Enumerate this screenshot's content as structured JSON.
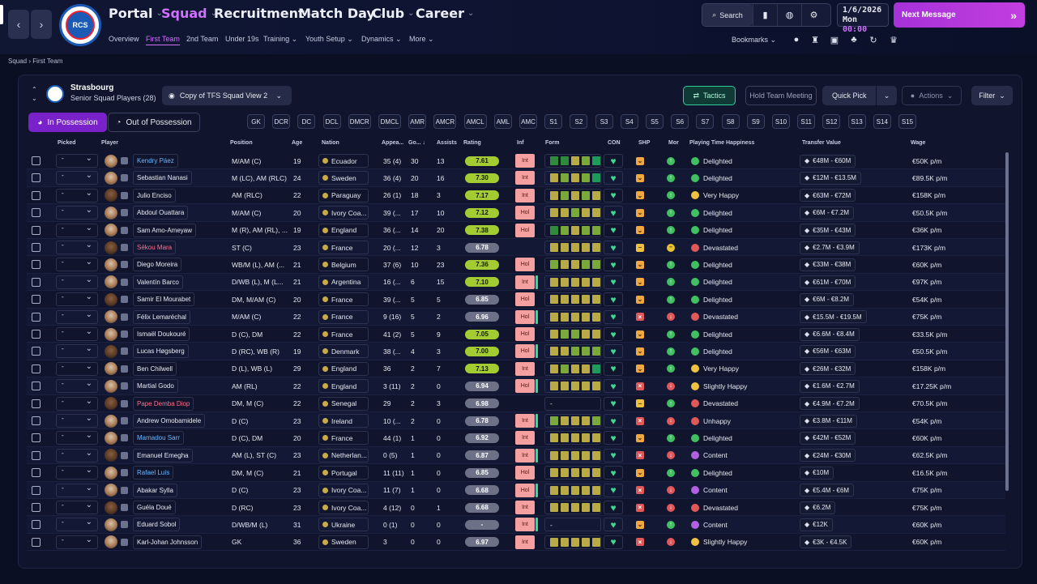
{
  "nav": {
    "back": "‹",
    "forward": "›",
    "menu": [
      {
        "label": "Portal",
        "active": false
      },
      {
        "label": "Squad",
        "active": true
      },
      {
        "label": "Recruitment",
        "active": false
      },
      {
        "label": "Match Day",
        "active": false
      },
      {
        "label": "Club",
        "active": false
      },
      {
        "label": "Career",
        "active": false
      }
    ],
    "submenu": [
      {
        "label": "Overview"
      },
      {
        "label": "First Team",
        "active": true
      },
      {
        "label": "2nd Team"
      },
      {
        "label": "Under 19s"
      },
      {
        "label": "Training ⌄"
      },
      {
        "label": "Youth Setup ⌄"
      },
      {
        "label": "Dynamics ⌄"
      },
      {
        "label": "More ⌄"
      }
    ],
    "search_label": "Search",
    "date": "1/6/2026",
    "day": "Mon",
    "time": "00:00",
    "next_message": "Next Message",
    "bookmarks": "Bookmarks ⌄"
  },
  "breadcrumb": {
    "root": "Squad",
    "sep": "›",
    "leaf": "First Team"
  },
  "team": {
    "name": "Strasbourg",
    "subtitle": "Senior Squad Players (28)"
  },
  "toolbar": {
    "view": "Copy of TFS Squad View 2",
    "tactics": "Tactics",
    "hold_meeting": "Hold Team Meeting",
    "quick_pick": "Quick Pick",
    "actions": "Actions",
    "filter": "Filter",
    "in_possession": "In Possession",
    "out_of_possession": "Out of Possession"
  },
  "positions": [
    "GK",
    "DCR",
    "DC",
    "DCL",
    "DMCR",
    "DMCL",
    "AMR",
    "AMCR",
    "AMCL",
    "AML",
    "AMC",
    "S1",
    "S2",
    "S3",
    "S4",
    "S5",
    "S6",
    "S7",
    "S8",
    "S9",
    "S10",
    "S11",
    "S12",
    "S13",
    "S14",
    "S15"
  ],
  "columns": {
    "picked": "Picked",
    "player": "Player",
    "position": "Position",
    "age": "Age",
    "nation": "Nation",
    "apps": "Appea...",
    "goals": "Go...",
    "assists": "Assists",
    "rating": "Rating",
    "inf": "Inf",
    "form": "Form",
    "con": "CON",
    "shp": "SHP",
    "mor": "Mor",
    "happiness": "Playing Time Happiness",
    "value": "Transfer Value",
    "wage": "Wage"
  },
  "players": [
    {
      "name": "Kendry Páez",
      "color": "blue",
      "pos": "M/AM (C)",
      "age": "19",
      "nation": "Ecuador",
      "apps": "35 (4)",
      "goals": "30",
      "assists": "13",
      "rating": "7.61",
      "inf": "Int",
      "form": [
        "dg",
        "dg",
        "y",
        "lg",
        "gg"
      ],
      "shp": "up",
      "mor": "g",
      "hap": "Delighted",
      "hapc": "g",
      "value": "€48M - €60M",
      "wage": "€50K p/m"
    },
    {
      "name": "Sebastian Nanasi",
      "color": "",
      "pos": "M (LC), AM (RLC)",
      "age": "24",
      "nation": "Sweden",
      "apps": "36 (4)",
      "goals": "20",
      "assists": "16",
      "rating": "7.30",
      "inf": "Int",
      "form": [
        "y",
        "lg",
        "y",
        "lg",
        "gg"
      ],
      "shp": "up",
      "mor": "g",
      "hap": "Delighted",
      "hapc": "g",
      "value": "€12M - €13.5M",
      "wage": "€89.5K p/m"
    },
    {
      "name": "Julio Enciso",
      "color": "",
      "pos": "AM (RLC)",
      "age": "22",
      "nation": "Paraguay",
      "apps": "26 (1)",
      "goals": "18",
      "assists": "3",
      "rating": "7.17",
      "inf": "Int",
      "form": [
        "y",
        "lg",
        "y",
        "lg",
        "y"
      ],
      "shp": "up",
      "mor": "g",
      "hap": "Very Happy",
      "hapc": "y",
      "value": "€63M - €72M",
      "wage": "€158K p/m"
    },
    {
      "name": "Abdoul Ouattara",
      "color": "",
      "pos": "M/AM (C)",
      "age": "20",
      "nation": "Ivory Coa...",
      "apps": "39 (...",
      "goals": "17",
      "assists": "10",
      "rating": "7.12",
      "inf": "Hol",
      "form": [
        "y",
        "y",
        "lg",
        "y",
        "y"
      ],
      "shp": "up",
      "mor": "g",
      "hap": "Delighted",
      "hapc": "g",
      "value": "€6M - €7.2M",
      "wage": "€50.5K p/m"
    },
    {
      "name": "Sam Amo-Ameyaw",
      "color": "",
      "pos": "M (R), AM (RL), ...",
      "age": "19",
      "nation": "England",
      "apps": "36 (...",
      "goals": "14",
      "assists": "20",
      "rating": "7.38",
      "inf": "Hol",
      "form": [
        "dg",
        "lg",
        "y",
        "lg",
        "lg"
      ],
      "shp": "up",
      "mor": "g",
      "hap": "Delighted",
      "hapc": "g",
      "value": "€35M - €43M",
      "wage": "€36K p/m"
    },
    {
      "name": "Sékou Mara",
      "color": "red",
      "pos": "ST (C)",
      "age": "23",
      "nation": "France",
      "apps": "20 (...",
      "goals": "12",
      "assists": "3",
      "rating": "6.78",
      "inf": "",
      "form": [
        "y",
        "y",
        "y",
        "y",
        "y"
      ],
      "shp": "mid",
      "mor": "y",
      "hap": "Devastated",
      "hapc": "r",
      "value": "€2.7M - €3.9M",
      "wage": "€173K p/m"
    },
    {
      "name": "Diego Moreira",
      "color": "",
      "pos": "WB/M (L), AM (...",
      "age": "21",
      "nation": "Belgium",
      "apps": "37 (6)",
      "goals": "10",
      "assists": "23",
      "rating": "7.36",
      "inf": "Hol",
      "form": [
        "lg",
        "y",
        "y",
        "lg",
        "lg"
      ],
      "shp": "up",
      "mor": "g",
      "hap": "Delighted",
      "hapc": "g",
      "value": "€33M - €38M",
      "wage": "€60K p/m"
    },
    {
      "name": "Valentín Barco",
      "color": "",
      "pos": "D/WB (L), M (L...",
      "age": "21",
      "nation": "Argentina",
      "apps": "16 (...",
      "goals": "6",
      "assists": "15",
      "rating": "7.10",
      "inf": "Int",
      "form": [
        "y",
        "y",
        "y",
        "y",
        "y"
      ],
      "shp": "up",
      "mor": "g",
      "hap": "Delighted",
      "hapc": "g",
      "value": "€61M - €70M",
      "wage": "€97K p/m"
    },
    {
      "name": "Samir El Mourabet",
      "color": "",
      "pos": "DM, M/AM (C)",
      "age": "20",
      "nation": "France",
      "apps": "39 (...",
      "goals": "5",
      "assists": "5",
      "rating": "6.85",
      "inf": "Hol",
      "form": [
        "y",
        "y",
        "y",
        "y",
        "y"
      ],
      "shp": "up",
      "mor": "g",
      "hap": "Delighted",
      "hapc": "g",
      "value": "€6M - €8.2M",
      "wage": "€54K p/m"
    },
    {
      "name": "Félix Lemaréchal",
      "color": "",
      "pos": "M/AM (C)",
      "age": "22",
      "nation": "France",
      "apps": "9 (16)",
      "goals": "5",
      "assists": "2",
      "rating": "6.96",
      "inf": "Hol",
      "form": [
        "y",
        "y",
        "y",
        "y",
        "y"
      ],
      "shp": "x",
      "mor": "r",
      "hap": "Devastated",
      "hapc": "r",
      "value": "€15.5M - €19.5M",
      "wage": "€75K p/m"
    },
    {
      "name": "Ismaël Doukouré",
      "color": "",
      "pos": "D (C), DM",
      "age": "22",
      "nation": "France",
      "apps": "41 (2)",
      "goals": "5",
      "assists": "9",
      "rating": "7.05",
      "inf": "Hol",
      "form": [
        "y",
        "lg",
        "lg",
        "y",
        "y"
      ],
      "shp": "up",
      "mor": "g",
      "hap": "Delighted",
      "hapc": "g",
      "value": "€6.6M - €8.4M",
      "wage": "€33.5K p/m"
    },
    {
      "name": "Lucas Høgsberg",
      "color": "",
      "pos": "D (RC), WB (R)",
      "age": "19",
      "nation": "Denmark",
      "apps": "38 (...",
      "goals": "4",
      "assists": "3",
      "rating": "7.00",
      "inf": "Hol",
      "form": [
        "y",
        "y",
        "lg",
        "lg",
        "lg"
      ],
      "shp": "up",
      "mor": "g",
      "hap": "Delighted",
      "hapc": "g",
      "value": "€56M - €63M",
      "wage": "€50.5K p/m"
    },
    {
      "name": "Ben Chilwell",
      "color": "",
      "pos": "D (L), WB (L)",
      "age": "29",
      "nation": "England",
      "apps": "36",
      "goals": "2",
      "assists": "7",
      "rating": "7.13",
      "inf": "Int",
      "form": [
        "y",
        "lg",
        "y",
        "y",
        "gg"
      ],
      "shp": "up",
      "mor": "g",
      "hap": "Very Happy",
      "hapc": "y",
      "value": "€26M - €32M",
      "wage": "€158K p/m"
    },
    {
      "name": "Martial Godo",
      "color": "",
      "pos": "AM (RL)",
      "age": "22",
      "nation": "England",
      "apps": "3 (11)",
      "goals": "2",
      "assists": "0",
      "rating": "6.94",
      "inf": "Hol",
      "form": [
        "y",
        "y",
        "y",
        "y",
        "y"
      ],
      "shp": "x",
      "mor": "r",
      "hap": "Slightly Happy",
      "hapc": "y",
      "value": "€1.6M - €2.7M",
      "wage": "€17.25K p/m"
    },
    {
      "name": "Pape Demba Diop",
      "color": "red",
      "pos": "DM, M (C)",
      "age": "22",
      "nation": "Senegal",
      "apps": "29",
      "goals": "2",
      "assists": "3",
      "rating": "6.98",
      "inf": "",
      "form": [],
      "shp": "mid",
      "mor": "g",
      "hap": "Devastated",
      "hapc": "r",
      "value": "€4.9M - €7.2M",
      "wage": "€70.5K p/m"
    },
    {
      "name": "Andrew Omobamidele",
      "color": "",
      "pos": "D (C)",
      "age": "23",
      "nation": "Ireland",
      "apps": "10 (...",
      "goals": "2",
      "assists": "0",
      "rating": "6.78",
      "inf": "Int",
      "form": [
        "lg",
        "y",
        "y",
        "y",
        "lg"
      ],
      "shp": "x",
      "mor": "r",
      "hap": "Unhappy",
      "hapc": "r",
      "value": "€3.8M - €11M",
      "wage": "€54K p/m"
    },
    {
      "name": "Mamadou Sarr",
      "color": "blue",
      "pos": "D (C), DM",
      "age": "20",
      "nation": "France",
      "apps": "44 (1)",
      "goals": "1",
      "assists": "0",
      "rating": "6.92",
      "inf": "Int",
      "form": [
        "y",
        "y",
        "y",
        "y",
        "y"
      ],
      "shp": "up",
      "mor": "g",
      "hap": "Delighted",
      "hapc": "g",
      "value": "€42M - €52M",
      "wage": "€60K p/m"
    },
    {
      "name": "Emanuel Emegha",
      "color": "",
      "pos": "AM (L), ST (C)",
      "age": "23",
      "nation": "Netherlan...",
      "apps": "0 (5)",
      "goals": "1",
      "assists": "0",
      "rating": "6.87",
      "inf": "Int",
      "form": [
        "y",
        "y",
        "y",
        "y",
        "y"
      ],
      "shp": "x",
      "mor": "r",
      "hap": "Content",
      "hapc": "p",
      "value": "€24M - €30M",
      "wage": "€62.5K p/m"
    },
    {
      "name": "Rafael Luís",
      "color": "blue",
      "pos": "DM, M (C)",
      "age": "21",
      "nation": "Portugal",
      "apps": "11 (11)",
      "goals": "1",
      "assists": "0",
      "rating": "6.85",
      "inf": "Hol",
      "form": [
        "y",
        "y",
        "y",
        "y",
        "y"
      ],
      "shp": "up",
      "mor": "g",
      "hap": "Delighted",
      "hapc": "g",
      "value": "€10M",
      "wage": "€16.5K p/m"
    },
    {
      "name": "Abakar Sylla",
      "color": "",
      "pos": "D (C)",
      "age": "23",
      "nation": "Ivory Coa...",
      "apps": "11 (7)",
      "goals": "1",
      "assists": "0",
      "rating": "6.68",
      "inf": "Hol",
      "form": [
        "y",
        "y",
        "y",
        "y",
        "y"
      ],
      "shp": "x",
      "mor": "r",
      "hap": "Content",
      "hapc": "p",
      "value": "€5.4M - €6M",
      "wage": "€75K p/m"
    },
    {
      "name": "Guéla Doué",
      "color": "",
      "pos": "D (RC)",
      "age": "23",
      "nation": "Ivory Coa...",
      "apps": "4 (12)",
      "goals": "0",
      "assists": "1",
      "rating": "6.68",
      "inf": "Int",
      "form": [
        "y",
        "y",
        "y",
        "y",
        "y"
      ],
      "shp": "x",
      "mor": "r",
      "hap": "Devastated",
      "hapc": "r",
      "value": "€6.2M",
      "wage": "€75K p/m"
    },
    {
      "name": "Eduard Sobol",
      "color": "",
      "pos": "D/WB/M (L)",
      "age": "31",
      "nation": "Ukraine",
      "apps": "0 (1)",
      "goals": "0",
      "assists": "0",
      "rating": "-",
      "inf": "Int",
      "form": [],
      "shp": "up",
      "mor": "g",
      "hap": "Content",
      "hapc": "p",
      "value": "€12K",
      "wage": "€60K p/m"
    },
    {
      "name": "Karl-Johan Johnsson",
      "color": "",
      "pos": "GK",
      "age": "36",
      "nation": "Sweden",
      "apps": "3",
      "goals": "0",
      "assists": "0",
      "rating": "6.97",
      "inf": "Int",
      "form": [
        "y",
        "y",
        "y",
        "y",
        "y"
      ],
      "shp": "x",
      "mor": "r",
      "hap": "Slightly Happy",
      "hapc": "y",
      "value": "€3K - €4.5K",
      "wage": "€60K p/m"
    }
  ]
}
